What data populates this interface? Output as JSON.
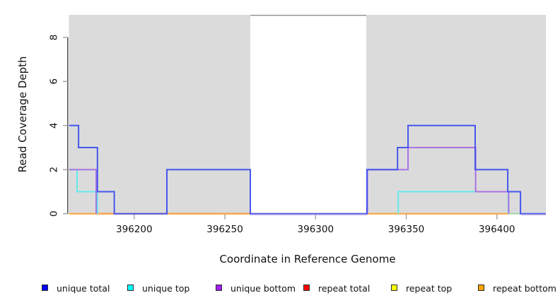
{
  "chart_data": {
    "type": "line",
    "step": true,
    "title": "",
    "xlabel": "Coordinate in Reference Genome",
    "ylabel": "Read Coverage Depth",
    "xlim": [
      396164,
      396427
    ],
    "ylim": [
      0,
      9
    ],
    "x_ticks": [
      396200,
      396250,
      396300,
      396350,
      396400
    ],
    "y_ticks": [
      0,
      2,
      4,
      6,
      8
    ],
    "grid": false,
    "legend_position": "bottom",
    "colors": {
      "panel_gray": "#DBDBDB",
      "gap_white": "#FFFFFF",
      "gap_top_border": "#8C8C8C",
      "axis_line": "#474747",
      "tick_mark": "#9A9A9A",
      "text": "#111111"
    },
    "background_regions": [
      {
        "name": "masked-region-left",
        "from": 396164,
        "to": 396264,
        "fill": "#DBDBDB"
      },
      {
        "name": "coverage-gap",
        "from": 396264,
        "to": 396328,
        "fill": "#FFFFFF",
        "top_border": "#8C8C8C"
      },
      {
        "name": "masked-region-right",
        "from": 396328,
        "to": 396427,
        "fill": "#DBDBDB"
      }
    ],
    "series": [
      {
        "id": "unique_total",
        "name": "unique total",
        "legend_color": "#0000FF",
        "line_color": "#4556EE",
        "width": 2,
        "paths": [
          [
            [
              396164,
              4
            ],
            [
              396169.3,
              4
            ],
            [
              396169.3,
              3
            ],
            [
              396179.7,
              3
            ],
            [
              396179.7,
              1
            ],
            [
              396189,
              1
            ],
            [
              396189,
              0
            ],
            [
              396218,
              0
            ],
            [
              396218,
              2
            ],
            [
              396264,
              2
            ],
            [
              396264,
              0
            ],
            [
              396328.3,
              0
            ],
            [
              396328.3,
              2
            ],
            [
              396345.2,
              2
            ],
            [
              396345.2,
              3
            ],
            [
              396351,
              3
            ],
            [
              396351,
              4
            ],
            [
              396388,
              4
            ],
            [
              396388,
              2
            ],
            [
              396406,
              2
            ],
            [
              396406,
              1
            ],
            [
              396413,
              1
            ],
            [
              396413,
              0
            ],
            [
              396427,
              0
            ]
          ]
        ]
      },
      {
        "id": "unique_top",
        "name": "unique top",
        "legend_color": "#00FFFF",
        "line_color": "#63E9EC",
        "width": 2,
        "paths": [
          [
            [
              396164,
              2
            ],
            [
              396168.5,
              2
            ],
            [
              396168.5,
              1
            ],
            [
              396179.7,
              1
            ],
            [
              396179.7,
              0
            ]
          ],
          [
            [
              396345.6,
              0
            ],
            [
              396345.6,
              1
            ],
            [
              396406.3,
              1
            ],
            [
              396406.3,
              0
            ]
          ]
        ]
      },
      {
        "id": "unique_bottom",
        "name": "unique bottom",
        "legend_color": "#A020F0",
        "line_color": "#A973E2",
        "width": 2,
        "paths": [
          [
            [
              396164,
              2
            ],
            [
              396179,
              2
            ],
            [
              396179,
              0
            ]
          ],
          [
            [
              396328.6,
              0
            ],
            [
              396328.6,
              2
            ],
            [
              396351,
              2
            ],
            [
              396351,
              3
            ],
            [
              396388.3,
              3
            ],
            [
              396388.3,
              1
            ],
            [
              396406.5,
              1
            ],
            [
              396406.5,
              0
            ]
          ]
        ]
      },
      {
        "id": "repeat_total",
        "name": "repeat total",
        "legend_color": "#FF0000",
        "line_color": "#E25570",
        "width": 1.8,
        "paths": [
          [
            [
              396179,
              0
            ],
            [
              396264,
              0
            ]
          ]
        ]
      },
      {
        "id": "repeat_top",
        "name": "repeat top",
        "legend_color": "#FFFF00",
        "line_color": "#A3D4A8",
        "width": 1.8,
        "paths": [
          [
            [
              396328,
              0
            ],
            [
              396345.4,
              0
            ]
          ],
          [
            [
              396406.6,
              0
            ],
            [
              396413,
              0
            ]
          ]
        ]
      },
      {
        "id": "repeat_bottom",
        "name": "repeat bottom",
        "legend_color": "#FFA500",
        "line_color": "#FFA437",
        "width": 2,
        "paths": [
          [
            [
              396164,
              0
            ],
            [
              396346,
              0
            ]
          ],
          [
            [
              396346,
              0
            ],
            [
              396406.2,
              0
            ]
          ]
        ]
      }
    ],
    "draw_order": [
      "repeat_total",
      "repeat_top",
      "repeat_bottom",
      "unique_top",
      "unique_bottom",
      "unique_total"
    ],
    "overlays": [
      {
        "name": "unique-bottom-baseline-tint",
        "color": "#B5A5EA",
        "width": 1.6,
        "dy": 1.3,
        "paths": [
          [
            [
              396264,
              0
            ],
            [
              396328,
              0
            ]
          ],
          [
            [
              396413.2,
              0
            ],
            [
              396427,
              0
            ]
          ]
        ]
      }
    ],
    "legend_layout": {
      "item_lefts": [
        59,
        180,
        305,
        429,
        553,
        676
      ]
    }
  }
}
